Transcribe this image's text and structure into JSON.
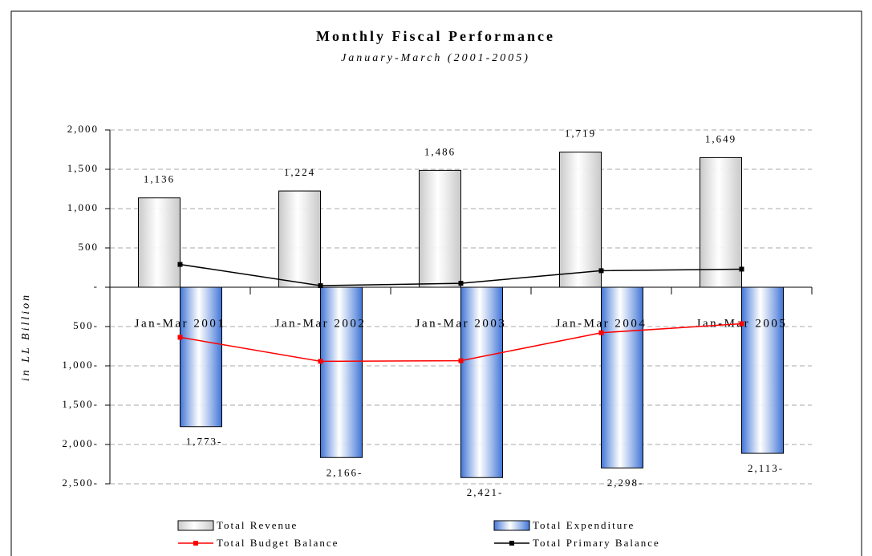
{
  "chart_data": {
    "type": "bar",
    "title": "Monthly Fiscal Performance",
    "subtitle": "January-March (2001-2005)",
    "y_label": "in LL Billion",
    "categories": [
      "Jan-Mar 2001",
      "Jan-Mar 2002",
      "Jan-Mar 2003",
      "Jan-Mar 2004",
      "Jan-Mar 2005"
    ],
    "series": [
      {
        "name": "Total Revenue",
        "type": "bar",
        "color": "#c8c8c8",
        "values": [
          1136,
          1224,
          1486,
          1719,
          1649
        ],
        "value_labels": [
          "1,136",
          "1,224",
          "1,486",
          "1,719",
          "1,649"
        ]
      },
      {
        "name": "Total Expenditure",
        "type": "bar",
        "color": "#3f74d6",
        "values": [
          -1773,
          -2166,
          -2421,
          -2298,
          -2113
        ],
        "value_labels": [
          "1,773-",
          "2,166-",
          "2,421-",
          "2,298-",
          "2,113-"
        ]
      },
      {
        "name": "Total Budget Balance",
        "type": "line",
        "color": "#ff0000",
        "values": [
          -637,
          -942,
          -935,
          -579,
          -464
        ]
      },
      {
        "name": "Total Primary Balance",
        "type": "line",
        "color": "#000000",
        "values": [
          290,
          20,
          50,
          210,
          230
        ]
      }
    ],
    "ylim": [
      -2500,
      2000
    ],
    "yticks": [
      {
        "value": 2000,
        "label": "2,000"
      },
      {
        "value": 1500,
        "label": "1,500"
      },
      {
        "value": 1000,
        "label": "1,000"
      },
      500,
      {
        "value": 0,
        "label": "-"
      },
      {
        "value": -500,
        "label": "500-"
      },
      {
        "value": -1000,
        "label": "1,000-"
      },
      {
        "value": -1500,
        "label": "1,500-"
      },
      {
        "value": -2000,
        "label": "2,000-"
      },
      {
        "value": -2500,
        "label": "2,500-"
      }
    ],
    "grid": true
  }
}
